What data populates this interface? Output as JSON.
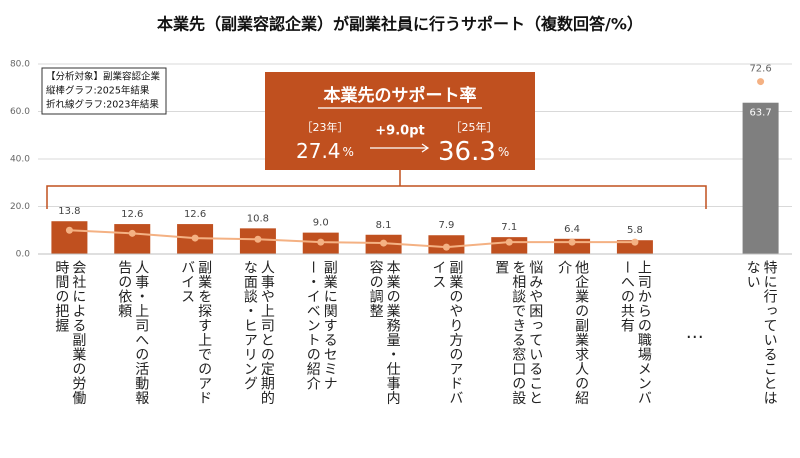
{
  "chart_data": {
    "type": "bar",
    "title": "本業先（副業容認企業）が副業社員に行うサポート（複数回答/%）",
    "categories": [
      "会社による副業の労働時間の把握",
      "人事・上司への活動報告の依頼",
      "副業を探す上でのアドバイス",
      "人事や上司との定期的な面談・ヒアリング",
      "副業に関するセミナー・イベントの紹介",
      "本業の業務量・仕事内容の調整",
      "副業のやり方のアドバイス",
      "悩みや困っていることを相談できる窓口の設置",
      "他企業の副業求人の紹介",
      "上司からの職場メンバーへの共有",
      "…",
      "特に行っていることはない"
    ],
    "series": [
      {
        "type": "bar",
        "colors": [
          "#c0501f",
          "#c0501f",
          "#c0501f",
          "#c0501f",
          "#c0501f",
          "#c0501f",
          "#c0501f",
          "#c0501f",
          "#c0501f",
          "#c0501f",
          null,
          "#7f7f7f"
        ],
        "values": [
          13.8,
          12.6,
          12.6,
          10.8,
          9.0,
          8.1,
          7.9,
          7.1,
          6.4,
          5.8,
          null,
          63.7
        ],
        "value_labels": [
          "13.8",
          "12.6",
          "12.6",
          "10.8",
          "9.0",
          "8.1",
          "7.9",
          "7.1",
          "6.4",
          "5.8",
          null,
          "63.7"
        ]
      },
      {
        "type": "line",
        "color": "#f4b183",
        "values": [
          10.0,
          8.7,
          6.7,
          6.2,
          5.0,
          4.6,
          2.9,
          5.0,
          5.0,
          5.0,
          null,
          72.6
        ],
        "labels": "last"
      }
    ],
    "ylim": [
      0,
      80
    ],
    "yticks": [
      {
        "value": 0,
        "label": "0.0"
      },
      {
        "value": 20,
        "label": "20.0"
      },
      {
        "value": 40,
        "label": "40.0"
      },
      {
        "value": 60,
        "label": "60.0"
      },
      {
        "value": 80,
        "label": "80.0"
      }
    ],
    "grid": true,
    "note_lines": [
      "【分析対象】副業容認企業",
      "縦棒グラフ:2025年結果",
      "折れ線グラフ:2023年結果"
    ],
    "callout": {
      "title": "本業先のサポート率",
      "label_a": "［23年］",
      "value_a": "27.4",
      "unit_a": "%",
      "change": "+9.0pt",
      "label_b": "［25年］",
      "value_b": "36.3",
      "unit_b": "%"
    }
  }
}
